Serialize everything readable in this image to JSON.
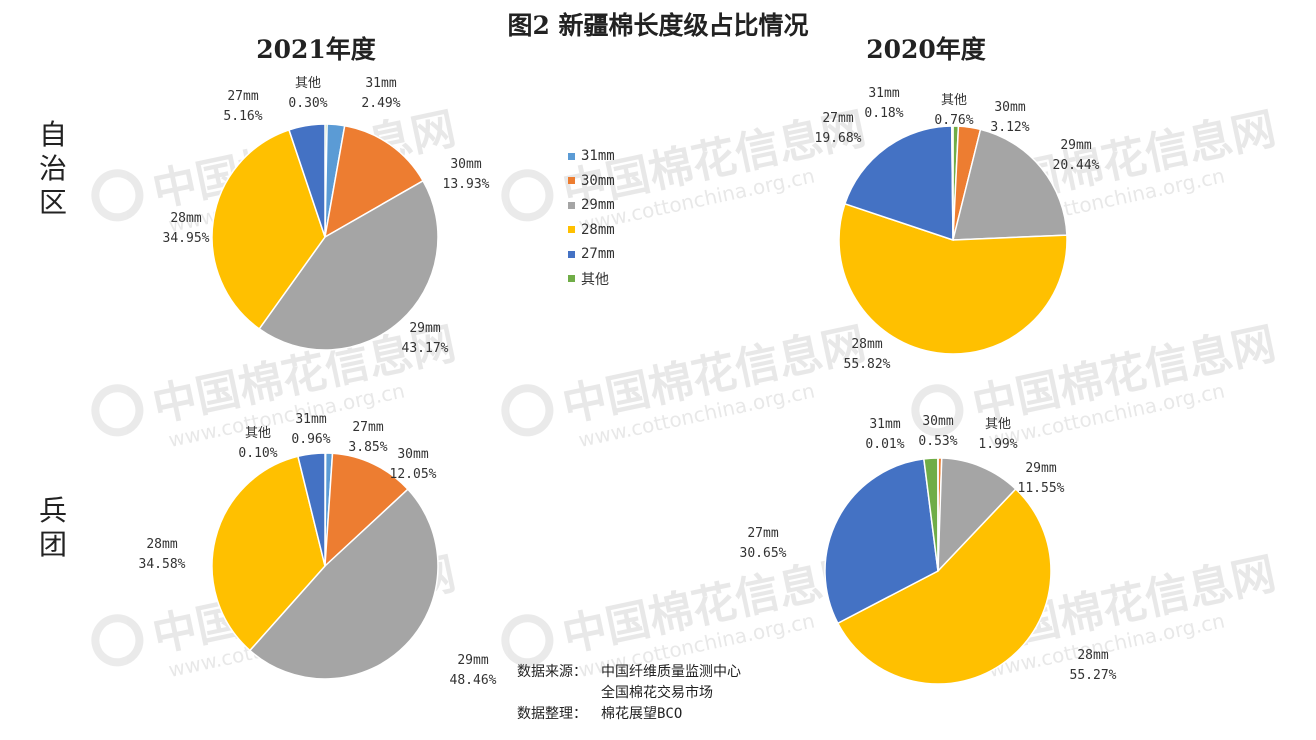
{
  "title": "图2 新疆棉长度级占比情况",
  "columns": [
    "2021年度",
    "2020年度"
  ],
  "rows": [
    "自治区",
    "兵团"
  ],
  "watermark": {
    "cn": "中国棉花信息网",
    "url": "www.cottonchina.org.cn"
  },
  "legend": [
    {
      "label": "31mm",
      "color": "#5B9BD5"
    },
    {
      "label": "30mm",
      "color": "#ED7D31"
    },
    {
      "label": "29mm",
      "color": "#A5A5A5"
    },
    {
      "label": "28mm",
      "color": "#FFC000"
    },
    {
      "label": "27mm",
      "color": "#4472C4"
    },
    {
      "label": "其他",
      "color": "#70AD47"
    }
  ],
  "source": [
    {
      "key": "数据来源：",
      "value": "中国纤维质量监测中心"
    },
    {
      "key": "",
      "value": "全国棉花交易市场"
    },
    {
      "key": "数据整理：",
      "value": "棉花展望BCO"
    }
  ],
  "chart_data": [
    {
      "type": "pie",
      "title": "自治区 2021年度",
      "slices": [
        {
          "label": "其他",
          "value": 0.3,
          "display": "0.30%"
        },
        {
          "label": "31mm",
          "value": 2.49,
          "display": "2.49%"
        },
        {
          "label": "30mm",
          "value": 13.93,
          "display": "13.93%"
        },
        {
          "label": "29mm",
          "value": 43.17,
          "display": "43.17%"
        },
        {
          "label": "28mm",
          "value": 34.95,
          "display": "34.95%"
        },
        {
          "label": "27mm",
          "value": 5.16,
          "display": "5.16%"
        }
      ]
    },
    {
      "type": "pie",
      "title": "自治区 2020年度",
      "slices": [
        {
          "label": "其他",
          "value": 0.76,
          "display": "0.76%"
        },
        {
          "label": "30mm",
          "value": 3.12,
          "display": "3.12%"
        },
        {
          "label": "29mm",
          "value": 20.44,
          "display": "20.44%"
        },
        {
          "label": "28mm",
          "value": 55.82,
          "display": "55.82%"
        },
        {
          "label": "27mm",
          "value": 19.68,
          "display": "19.68%"
        },
        {
          "label": "31mm",
          "value": 0.18,
          "display": "0.18%"
        }
      ]
    },
    {
      "type": "pie",
      "title": "兵团 2021年度",
      "slices": [
        {
          "label": "其他",
          "value": 0.1,
          "display": "0.10%"
        },
        {
          "label": "31mm",
          "value": 0.96,
          "display": "0.96%"
        },
        {
          "label": "30mm",
          "value": 12.05,
          "display": "12.05%"
        },
        {
          "label": "29mm",
          "value": 48.46,
          "display": "48.46%"
        },
        {
          "label": "28mm",
          "value": 34.58,
          "display": "34.58%"
        },
        {
          "label": "27mm",
          "value": 3.85,
          "display": "3.85%"
        }
      ]
    },
    {
      "type": "pie",
      "title": "兵团 2020年度",
      "slices": [
        {
          "label": "30mm",
          "value": 0.53,
          "display": "0.53%"
        },
        {
          "label": "29mm",
          "value": 11.55,
          "display": "11.55%"
        },
        {
          "label": "28mm",
          "value": 55.27,
          "display": "55.27%"
        },
        {
          "label": "27mm",
          "value": 30.65,
          "display": "30.65%"
        },
        {
          "label": "其他",
          "value": 1.99,
          "display": "1.99%"
        },
        {
          "label": "31mm",
          "value": 0.01,
          "display": "0.01%"
        }
      ]
    }
  ]
}
